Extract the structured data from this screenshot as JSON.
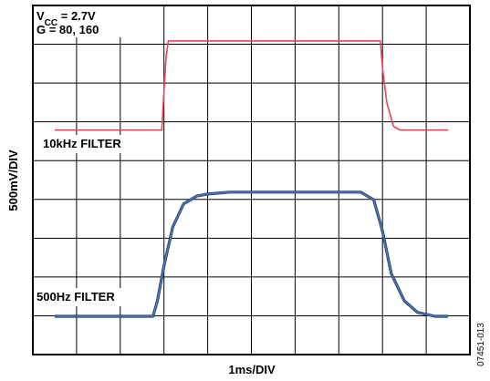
{
  "chart_data": {
    "type": "line",
    "title": "",
    "xlabel": "1ms/DIV",
    "ylabel": "500mV/DIV",
    "figure_id": "07451-013",
    "conditions": {
      "vcc_prefix": "V",
      "vcc_sub": "CC",
      "vcc_value": " = 2.7V",
      "gain": "G = 80, 160"
    },
    "grid": true,
    "divisions": {
      "x": 10,
      "y": 9
    },
    "xlim": [
      0,
      10
    ],
    "ylim": [
      0,
      9
    ],
    "series": [
      {
        "name": "10kHz FILTER",
        "color": "#e8445e",
        "x": [
          0.5,
          2.95,
          3.0,
          3.05,
          3.1,
          3.2,
          7.95,
          8.0,
          8.1,
          8.25,
          8.4,
          9.5
        ],
        "y": [
          4.8,
          4.8,
          5.8,
          6.7,
          7.1,
          7.1,
          7.1,
          6.4,
          5.5,
          4.9,
          4.8,
          4.8
        ]
      },
      {
        "name": "500Hz FILTER",
        "color": "#4a76c1",
        "x": [
          0.5,
          2.75,
          2.85,
          3.0,
          3.2,
          3.45,
          3.75,
          4.0,
          4.5,
          7.5,
          7.8,
          8.0,
          8.2,
          8.5,
          8.8,
          9.2,
          9.5
        ],
        "y": [
          0.0,
          0.0,
          0.4,
          1.3,
          2.3,
          2.9,
          3.1,
          3.15,
          3.2,
          3.2,
          3.0,
          2.2,
          1.1,
          0.4,
          0.1,
          0.0,
          0.0
        ]
      }
    ]
  }
}
